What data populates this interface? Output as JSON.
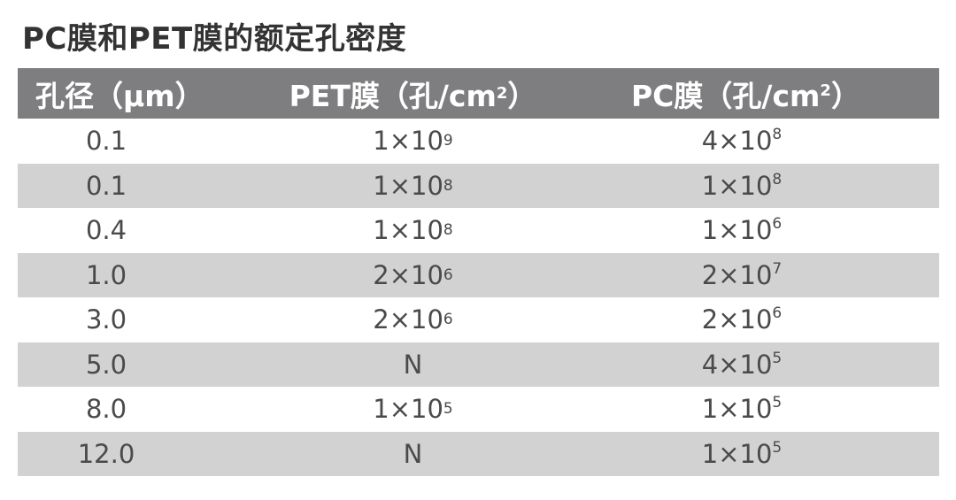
{
  "title": "PC膜和PET膜的额定孔密度",
  "table": {
    "headers": {
      "col1": "孔径（μm）",
      "col2_base": "PET膜（孔/cm",
      "col2_sup": "2",
      "col2_end": "）",
      "col3_base": "PC膜（孔/cm",
      "col3_sup": "2",
      "col3_end": "）"
    },
    "rows": [
      {
        "pore": "0.1",
        "pet_base": "1×10",
        "pet_exp": "9",
        "pc_base": "4×10",
        "pc_exp": "8"
      },
      {
        "pore": "0.1",
        "pet_base": "1×10",
        "pet_exp": "8",
        "pc_base": "1×10",
        "pc_exp": "8"
      },
      {
        "pore": "0.4",
        "pet_base": "1×10",
        "pet_exp": "8",
        "pc_base": "1×10",
        "pc_exp": "6"
      },
      {
        "pore": "1.0",
        "pet_base": "2×10",
        "pet_exp": "6",
        "pc_base": "2×10",
        "pc_exp": "7"
      },
      {
        "pore": "3.0",
        "pet_base": "2×10",
        "pet_exp": "6",
        "pc_base": "2×10",
        "pc_exp": "6"
      },
      {
        "pore": "5.0",
        "pet_base": "N",
        "pet_exp": "",
        "pc_base": "4×10",
        "pc_exp": "5"
      },
      {
        "pore": "8.0",
        "pet_base": "1×10",
        "pet_exp": "5",
        "pc_base": "1×10",
        "pc_exp": "5"
      },
      {
        "pore": "12.0",
        "pet_base": "N",
        "pet_exp": "",
        "pc_base": "1×10",
        "pc_exp": "5"
      }
    ]
  },
  "colors": {
    "header_bg": "#7e7e80",
    "stripe_bg": "#d2d2d3",
    "text": "#4a4a4a"
  }
}
